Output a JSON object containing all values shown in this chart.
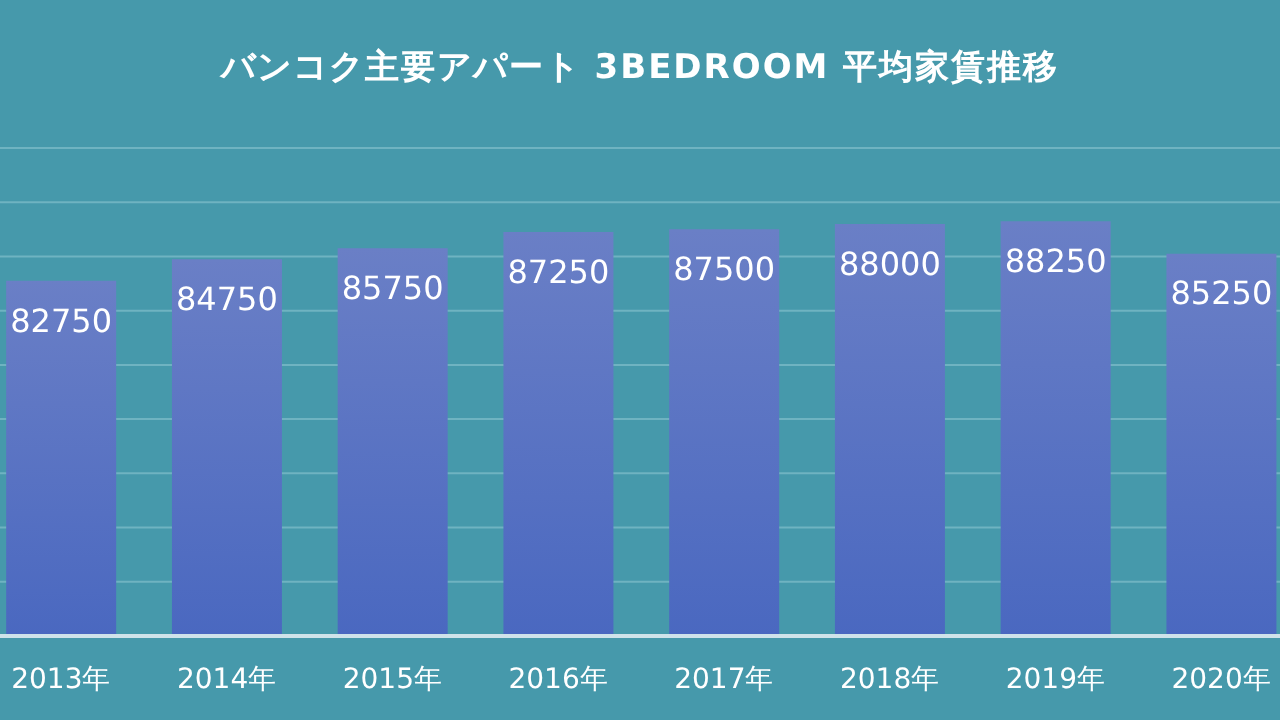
{
  "chart_data": {
    "type": "bar",
    "title": "バンコク主要アパート 3BEDROOM 平均家賃推移",
    "categories": [
      "2013年",
      "2014年",
      "2015年",
      "2016年",
      "2017年",
      "2018年",
      "2019年",
      "2020年"
    ],
    "values": [
      82750,
      84750,
      85750,
      87250,
      87500,
      88000,
      88250,
      85250
    ],
    "color": "#4a68c0",
    "data_labels": true,
    "grid": "y",
    "tick_labels": "x",
    "legend": false,
    "ylim": [
      50000,
      95000
    ],
    "yticks": [
      {
        "value": 50000,
        "label": null
      },
      {
        "value": 55000,
        "label": null
      },
      {
        "value": 60000,
        "label": null
      },
      {
        "value": 65000,
        "label": null
      },
      {
        "value": 70000,
        "label": null
      },
      {
        "value": 75000,
        "label": null
      },
      {
        "value": 80000,
        "label": null
      },
      {
        "value": 85000,
        "label": null
      },
      {
        "value": 90000,
        "label": null
      },
      {
        "value": 95000,
        "label": null
      }
    ]
  }
}
